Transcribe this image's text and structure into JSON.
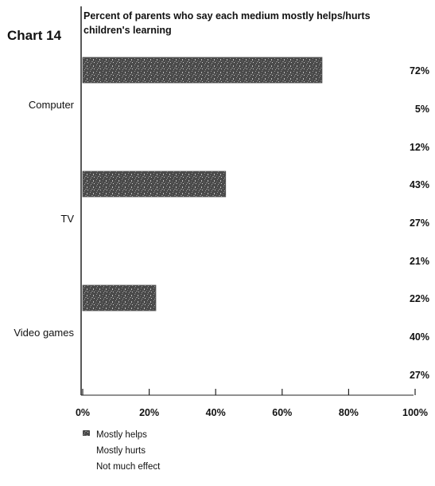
{
  "chart_data": {
    "type": "bar",
    "orientation": "horizontal",
    "chart_number": "Chart 14",
    "title": "Percent of parents who say each medium mostly helps/hurts children's learning",
    "categories": [
      "Computer",
      "TV",
      "Video games"
    ],
    "series": [
      {
        "name": "Mostly helps",
        "values": [
          72,
          43,
          22
        ],
        "color": "#3a3a3a"
      },
      {
        "name": "Mostly hurts",
        "values": [
          5,
          27,
          40
        ],
        "color": "#ffffff"
      },
      {
        "name": "Not much effect",
        "values": [
          12,
          21,
          27
        ],
        "color": "#ffffff"
      }
    ],
    "value_labels": [
      [
        "72%",
        "5%",
        "12%"
      ],
      [
        "43%",
        "27%",
        "21%"
      ],
      [
        "22%",
        "40%",
        "27%"
      ]
    ],
    "xlim": [
      0,
      100
    ],
    "x_ticks": [
      0,
      20,
      40,
      60,
      80,
      100
    ],
    "x_tick_labels": [
      "0%",
      "20%",
      "40%",
      "60%",
      "80%",
      "100%"
    ],
    "legend_position": "bottom-left"
  }
}
